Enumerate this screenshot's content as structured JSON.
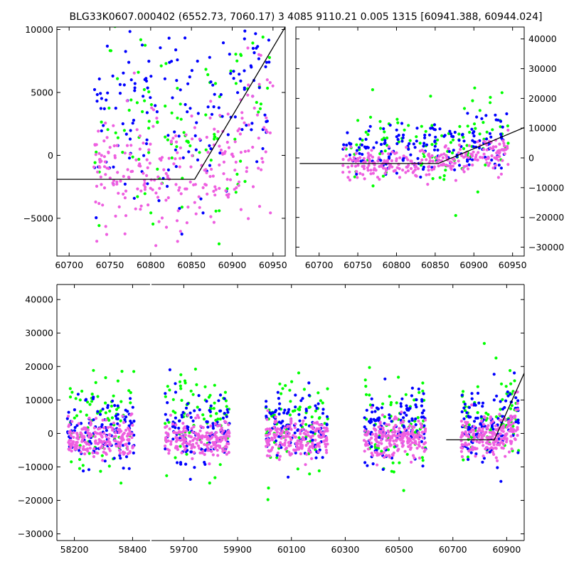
{
  "title": "BLG33K0607.000402 (6552.73, 7060.17)  3 4085 9110.21 0.005 1315 [60941.388, 60944.024]",
  "colors": {
    "green": "#00ff00",
    "blue": "#0000ff",
    "magenta": "#ee5fe0",
    "model": "#000000",
    "axes": "#000000",
    "background": "#ffffff"
  },
  "chart_data": [
    {
      "type": "scatter",
      "panel": "top-left",
      "xlim": [
        60685,
        60965
      ],
      "ylim": [
        -8000,
        10200
      ],
      "xticks": [
        60700,
        60750,
        60800,
        60850,
        60900,
        60950
      ],
      "yticks": [
        -5000,
        0,
        5000,
        10000
      ],
      "ytick_side": "left",
      "series": [
        {
          "color": "green",
          "x_range": [
            60730,
            60950
          ],
          "y_center": 2500,
          "y_spread": 4000,
          "n": 110
        },
        {
          "color": "blue",
          "x_range": [
            60730,
            60950
          ],
          "y_center": 3000,
          "y_spread": 3800,
          "n": 170
        },
        {
          "color": "magenta",
          "x_range": [
            60730,
            60950
          ],
          "y_center": -1500,
          "y_spread": 2500,
          "n": 260
        }
      ],
      "model": [
        [
          60685,
          -1900
        ],
        [
          60854,
          -1900
        ],
        [
          60965,
          10200
        ]
      ]
    },
    {
      "type": "scatter",
      "panel": "top-right",
      "xlim": [
        60670,
        60965
      ],
      "ylim": [
        -33000,
        44000
      ],
      "xticks": [
        60700,
        60750,
        60800,
        60850,
        60900,
        60950
      ],
      "yticks": [
        -30000,
        -20000,
        -10000,
        0,
        10000,
        20000,
        30000,
        40000
      ],
      "ytick_side": "right",
      "series": [
        {
          "color": "green",
          "x_range": [
            60730,
            60945
          ],
          "y_center": 4000,
          "y_spread": 6000,
          "n": 110
        },
        {
          "color": "blue",
          "x_range": [
            60730,
            60945
          ],
          "y_center": 2500,
          "y_spread": 4500,
          "n": 170
        },
        {
          "color": "magenta",
          "x_range": [
            60730,
            60945
          ],
          "y_center": -2000,
          "y_spread": 2500,
          "n": 260
        }
      ],
      "model": [
        [
          60675,
          -1900
        ],
        [
          60854,
          -1900
        ],
        [
          60965,
          10200
        ]
      ]
    },
    {
      "type": "scatter",
      "panel": "bottom",
      "ylim": [
        -32000,
        44500
      ],
      "yticks": [
        -30000,
        -20000,
        -10000,
        0,
        10000,
        20000,
        30000,
        40000
      ],
      "ytick_side": "left",
      "segments": [
        {
          "xlim": [
            58140,
            58460
          ],
          "xticks": [
            58200,
            58400
          ]
        },
        {
          "xlim": [
            59580,
            60965
          ],
          "xticks": [
            59700,
            59900,
            60100,
            60300,
            60500,
            60700,
            60900
          ]
        }
      ],
      "seasons": [
        {
          "seg": 0,
          "x_range": [
            58175,
            58405
          ]
        },
        {
          "seg": 1,
          "x_range": [
            59630,
            59870
          ]
        },
        {
          "seg": 1,
          "x_range": [
            60005,
            60235
          ]
        },
        {
          "seg": 1,
          "x_range": [
            60370,
            60600
          ]
        },
        {
          "seg": 1,
          "x_range": [
            60730,
            60945
          ]
        }
      ],
      "series": [
        {
          "color": "green",
          "y_center": 3500,
          "y_spread": 7000,
          "n_per_season": 75
        },
        {
          "color": "blue",
          "y_center": 2000,
          "y_spread": 5000,
          "n_per_season": 115
        },
        {
          "color": "magenta",
          "y_center": -1500,
          "y_spread": 2800,
          "n_per_season": 200
        }
      ],
      "model": [
        [
          60675,
          -1900
        ],
        [
          60854,
          -1900
        ],
        [
          60965,
          18000
        ]
      ]
    }
  ]
}
